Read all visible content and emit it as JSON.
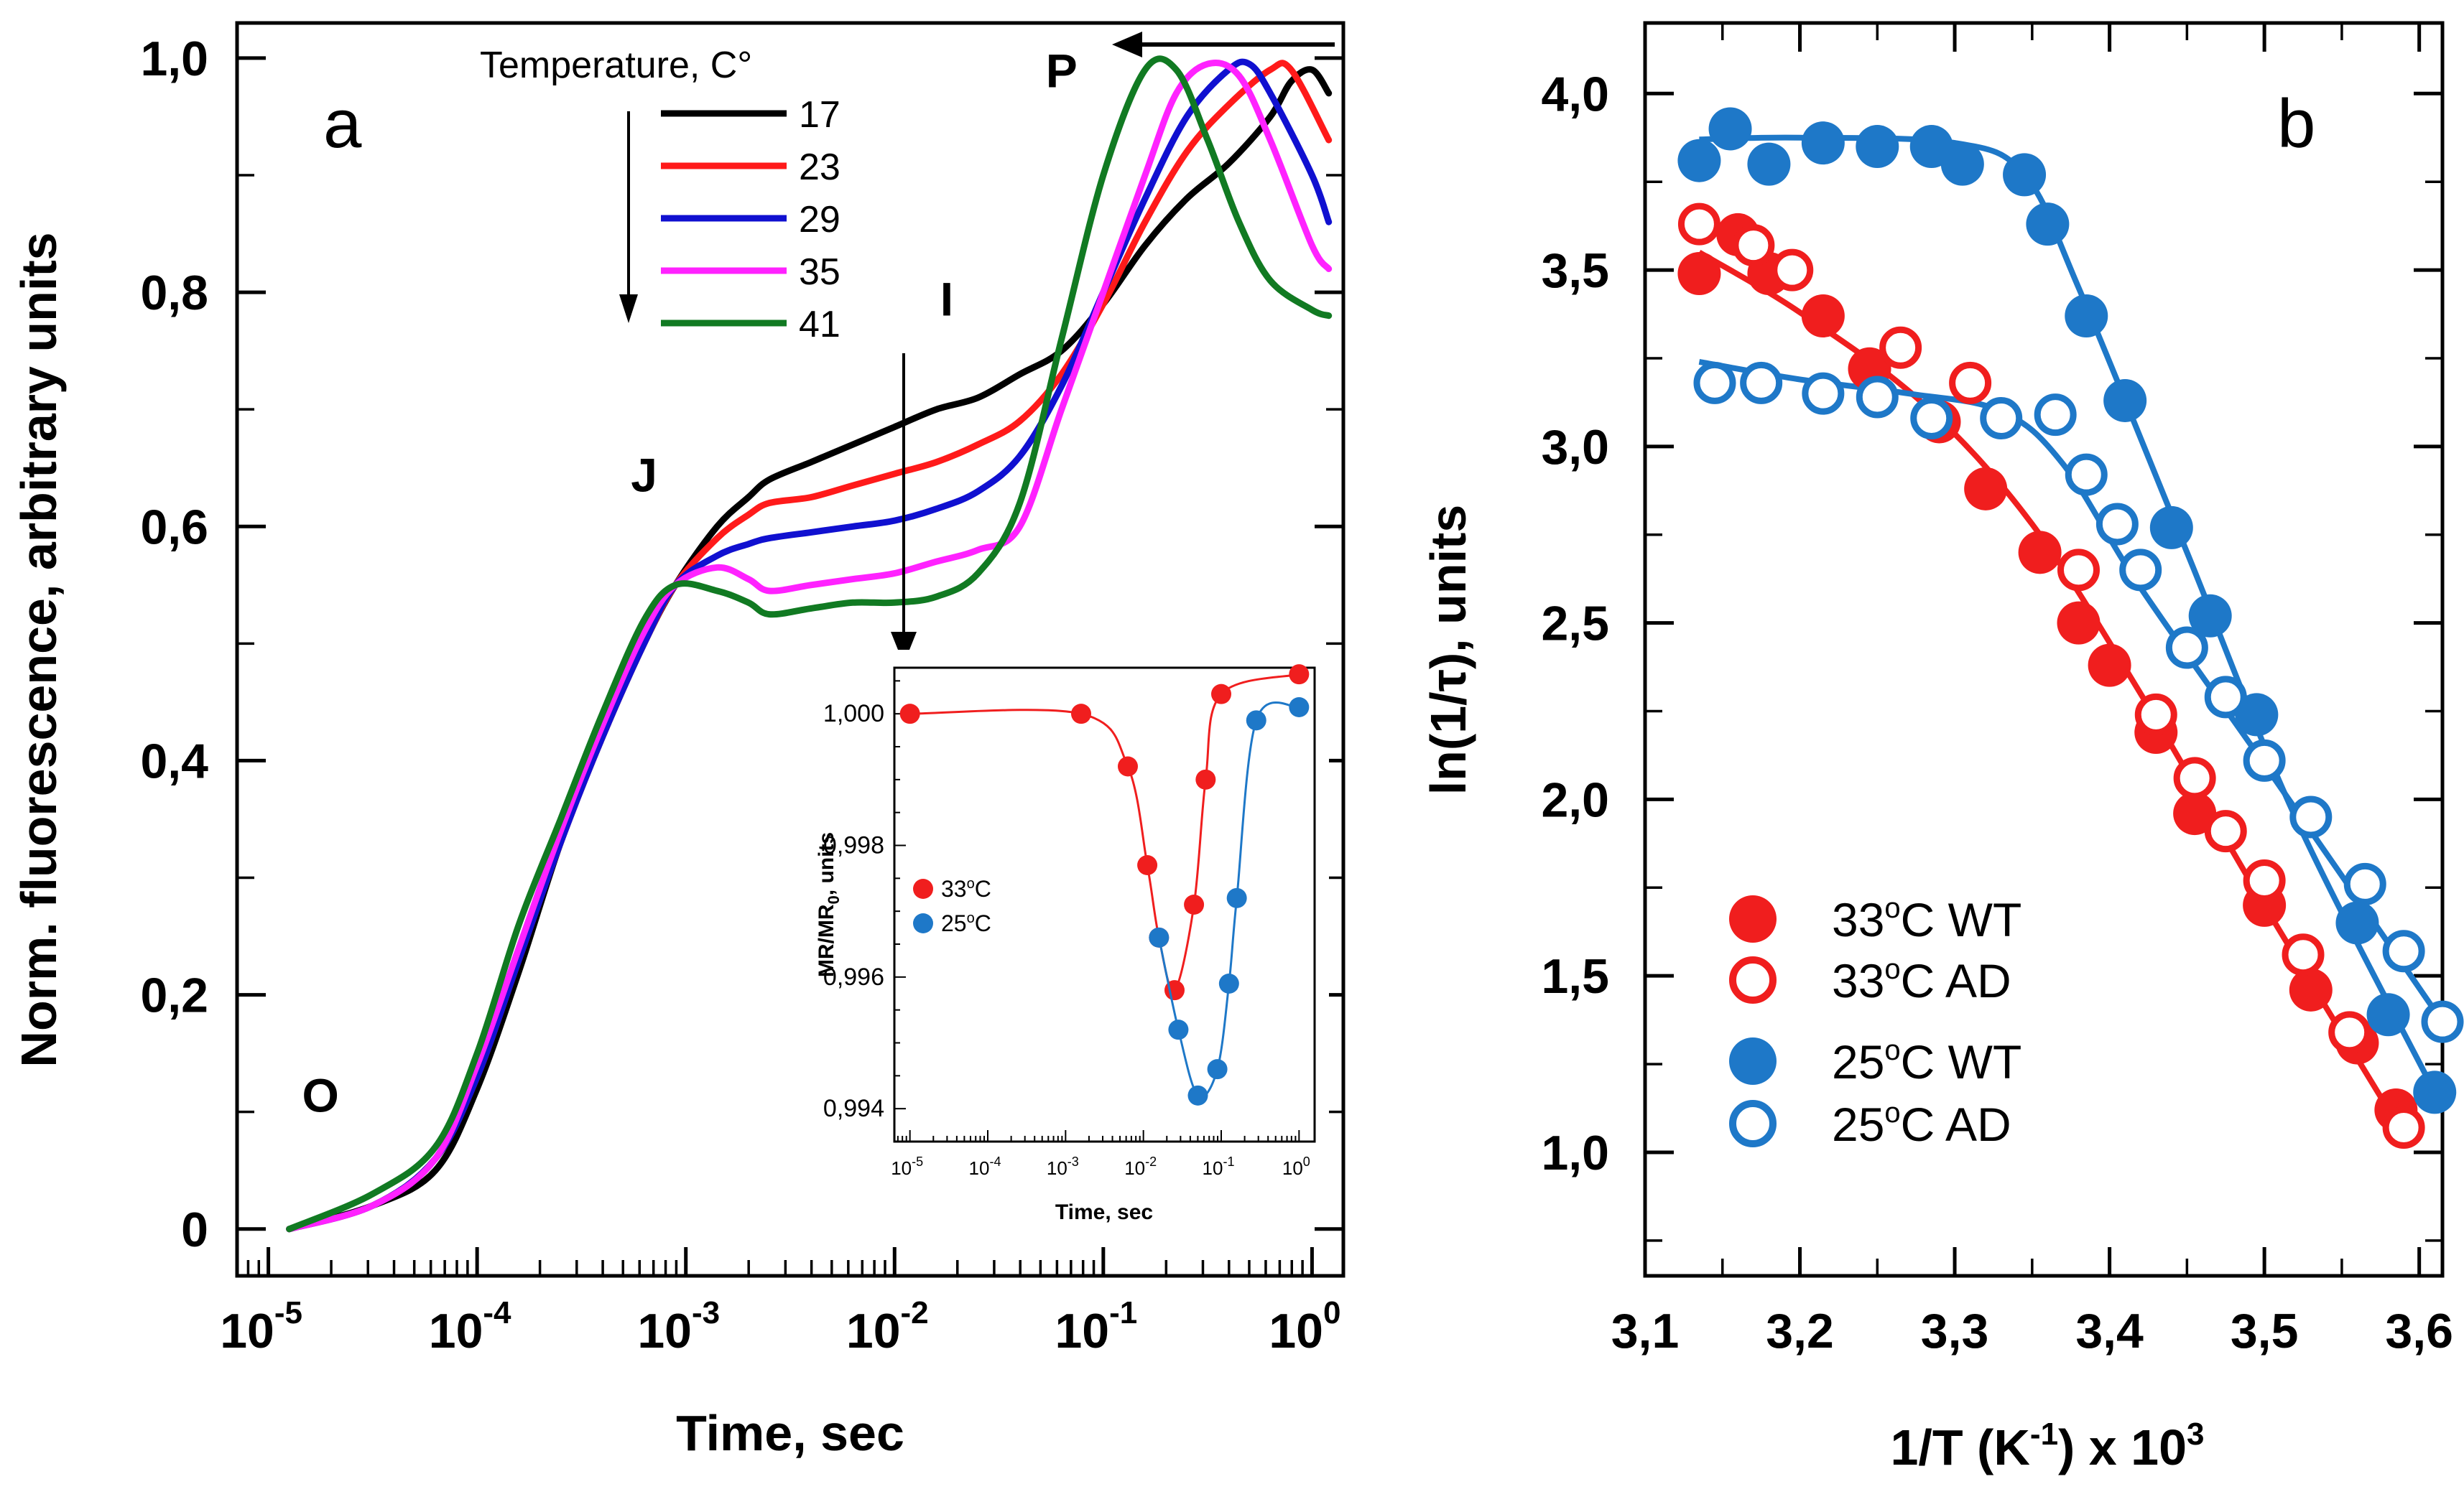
{
  "colors": {
    "17": "#000000",
    "23": "#ff1a1a",
    "29": "#1010d0",
    "35": "#ff22ff",
    "41": "#117a22",
    "red": "#f01e1e",
    "blue": "#1e78c8"
  },
  "chart_data": [
    {
      "id": "a",
      "type": "line",
      "panel_label": "a",
      "xlabel": "Time, sec",
      "ylabel": "Norm. fluorescence, arbitrary units",
      "xscale": "log",
      "xlim": [
        -5.15,
        0.15
      ],
      "ylim": [
        -0.04,
        1.03
      ],
      "xticks": [
        {
          "v": -5,
          "base": "10",
          "exp": "-5"
        },
        {
          "v": -4,
          "base": "10",
          "exp": "-4"
        },
        {
          "v": -3,
          "base": "10",
          "exp": "-3"
        },
        {
          "v": -2,
          "base": "10",
          "exp": "-2"
        },
        {
          "v": -1,
          "base": "10",
          "exp": "-1"
        },
        {
          "v": 0,
          "base": "10",
          "exp": "0"
        }
      ],
      "yticks": [
        {
          "v": 0,
          "label": "0"
        },
        {
          "v": 0.2,
          "label": "0,2"
        },
        {
          "v": 0.4,
          "label": "0,4"
        },
        {
          "v": 0.6,
          "label": "0,6"
        },
        {
          "v": 0.8,
          "label": "0,8"
        },
        {
          "v": 1.0,
          "label": "1,0"
        }
      ],
      "phase_labels": [
        {
          "text": "O",
          "x": -4.75,
          "y": 0.1
        },
        {
          "text": "J",
          "x": -3.2,
          "y": 0.63
        },
        {
          "text": "I",
          "x": -1.75,
          "y": 0.78
        },
        {
          "text": "P",
          "x": -1.2,
          "y": 0.975
        }
      ],
      "legend": {
        "title": "Temperature, C°",
        "entries": [
          {
            "label": "17",
            "color": "#000000"
          },
          {
            "label": "23",
            "color": "#ff1a1a"
          },
          {
            "label": "29",
            "color": "#1010d0"
          },
          {
            "label": "35",
            "color": "#ff22ff"
          },
          {
            "label": "41",
            "color": "#117a22"
          }
        ]
      },
      "series": [
        {
          "name": "17",
          "color": "#000000",
          "x": [
            -4.9,
            -4.5,
            -4.2,
            -4.0,
            -3.8,
            -3.6,
            -3.4,
            -3.2,
            -3.05,
            -2.85,
            -2.7,
            -2.6,
            -2.4,
            -2.2,
            -2.0,
            -1.8,
            -1.6,
            -1.4,
            -1.2,
            -1.0,
            -0.8,
            -0.6,
            -0.4,
            -0.2,
            -0.1,
            0.0,
            0.08
          ],
          "y": [
            0.0,
            0.02,
            0.05,
            0.12,
            0.22,
            0.33,
            0.42,
            0.5,
            0.55,
            0.6,
            0.625,
            0.64,
            0.655,
            0.67,
            0.685,
            0.7,
            0.71,
            0.73,
            0.75,
            0.79,
            0.84,
            0.88,
            0.91,
            0.95,
            0.98,
            0.99,
            0.97
          ]
        },
        {
          "name": "23",
          "color": "#ff1a1a",
          "x": [
            -4.9,
            -4.5,
            -4.2,
            -4.0,
            -3.8,
            -3.6,
            -3.4,
            -3.2,
            -3.05,
            -2.85,
            -2.7,
            -2.6,
            -2.4,
            -2.2,
            -2.0,
            -1.8,
            -1.6,
            -1.4,
            -1.2,
            -1.0,
            -0.8,
            -0.6,
            -0.4,
            -0.2,
            -0.1,
            0.08
          ],
          "y": [
            0.0,
            0.02,
            0.06,
            0.13,
            0.23,
            0.33,
            0.42,
            0.5,
            0.55,
            0.59,
            0.61,
            0.62,
            0.625,
            0.635,
            0.645,
            0.655,
            0.67,
            0.69,
            0.73,
            0.79,
            0.86,
            0.92,
            0.96,
            0.99,
            0.99,
            0.93
          ]
        },
        {
          "name": "29",
          "color": "#1010d0",
          "x": [
            -4.9,
            -4.5,
            -4.2,
            -4.0,
            -3.8,
            -3.6,
            -3.4,
            -3.2,
            -3.05,
            -2.85,
            -2.7,
            -2.6,
            -2.4,
            -2.2,
            -2.0,
            -1.8,
            -1.6,
            -1.4,
            -1.2,
            -1.0,
            -0.8,
            -0.6,
            -0.4,
            -0.3,
            -0.2,
            0.0,
            0.08
          ],
          "y": [
            0.0,
            0.02,
            0.06,
            0.13,
            0.23,
            0.33,
            0.42,
            0.5,
            0.55,
            0.575,
            0.585,
            0.59,
            0.595,
            0.6,
            0.605,
            0.615,
            0.63,
            0.66,
            0.72,
            0.8,
            0.88,
            0.95,
            0.99,
            0.995,
            0.97,
            0.9,
            0.86
          ]
        },
        {
          "name": "35",
          "color": "#ff22ff",
          "x": [
            -4.9,
            -4.5,
            -4.2,
            -4.0,
            -3.8,
            -3.6,
            -3.4,
            -3.2,
            -3.05,
            -2.85,
            -2.7,
            -2.6,
            -2.4,
            -2.2,
            -2.0,
            -1.8,
            -1.6,
            -1.4,
            -1.2,
            -1.0,
            -0.8,
            -0.65,
            -0.5,
            -0.35,
            -0.2,
            0.0,
            0.08
          ],
          "y": [
            0.0,
            0.02,
            0.06,
            0.14,
            0.24,
            0.34,
            0.43,
            0.51,
            0.55,
            0.565,
            0.555,
            0.545,
            0.55,
            0.555,
            0.56,
            0.57,
            0.58,
            0.6,
            0.7,
            0.8,
            0.9,
            0.97,
            0.995,
            0.985,
            0.93,
            0.84,
            0.82
          ]
        },
        {
          "name": "41",
          "color": "#117a22",
          "x": [
            -4.9,
            -4.5,
            -4.2,
            -4.0,
            -3.8,
            -3.6,
            -3.4,
            -3.2,
            -3.05,
            -2.85,
            -2.7,
            -2.6,
            -2.4,
            -2.2,
            -2.0,
            -1.8,
            -1.6,
            -1.4,
            -1.2,
            -1.0,
            -0.8,
            -0.65,
            -0.5,
            -0.35,
            -0.2,
            0.0,
            0.08
          ],
          "y": [
            0.0,
            0.03,
            0.07,
            0.15,
            0.26,
            0.35,
            0.44,
            0.52,
            0.55,
            0.545,
            0.535,
            0.525,
            0.53,
            0.535,
            0.535,
            0.54,
            0.56,
            0.62,
            0.76,
            0.9,
            0.99,
            0.99,
            0.93,
            0.86,
            0.81,
            0.785,
            0.78
          ]
        }
      ]
    },
    {
      "id": "a-inset",
      "type": "line",
      "xlabel": "Time, sec",
      "ylabel": "MR/MR",
      "ylabel_sub": "0",
      "ylabel_suffix": ", units",
      "xscale": "log",
      "xlim": [
        -5.2,
        0.2
      ],
      "ylim": [
        0.9935,
        1.0007
      ],
      "xticks": [
        {
          "v": -5,
          "base": "10",
          "exp": "-5"
        },
        {
          "v": -4,
          "base": "10",
          "exp": "-4"
        },
        {
          "v": -3,
          "base": "10",
          "exp": "-3"
        },
        {
          "v": -2,
          "base": "10",
          "exp": "-2"
        },
        {
          "v": -1,
          "base": "10",
          "exp": "-1"
        },
        {
          "v": 0,
          "base": "10",
          "exp": "0"
        }
      ],
      "yticks": [
        {
          "v": 0.994,
          "label": "0,994"
        },
        {
          "v": 0.996,
          "label": "0,996"
        },
        {
          "v": 0.998,
          "label": "0,998"
        },
        {
          "v": 1.0,
          "label": "1,000"
        }
      ],
      "legend": {
        "entries": [
          {
            "label": "33",
            "sup": "o",
            "unit": "C",
            "color": "#f01e1e"
          },
          {
            "label": "25",
            "sup": "o",
            "unit": "C",
            "color": "#1e78c8"
          }
        ]
      },
      "series": [
        {
          "name": "33oC",
          "color": "#f01e1e",
          "x": [
            -5.0,
            -2.8,
            -2.2,
            -1.95,
            -1.8,
            -1.6,
            -1.35,
            -1.2,
            -1.0,
            0.0
          ],
          "y": [
            1.0,
            1.0,
            0.9992,
            0.9977,
            0.9966,
            0.9958,
            0.9971,
            0.999,
            1.0003,
            1.0006
          ]
        },
        {
          "name": "25oC",
          "color": "#1e78c8",
          "x": [
            -1.8,
            -1.55,
            -1.3,
            -1.05,
            -0.9,
            -0.8,
            -0.55,
            0.0
          ],
          "y": [
            0.9966,
            0.9952,
            0.9942,
            0.9946,
            0.9959,
            0.9972,
            0.9999,
            1.0001
          ]
        }
      ]
    },
    {
      "id": "b",
      "type": "scatter",
      "panel_label": "b",
      "xlabel": "1/T (K",
      "xlabel_sup": "-1",
      "xlabel_suffix": ") x 10",
      "xlabel_sup2": "3",
      "ylabel": "ln(1/τ), units",
      "xlim": [
        3.1,
        3.615
      ],
      "ylim": [
        0.65,
        4.2
      ],
      "xticks": [
        {
          "v": 3.1,
          "label": "3,1"
        },
        {
          "v": 3.2,
          "label": "3,2"
        },
        {
          "v": 3.3,
          "label": "3,3"
        },
        {
          "v": 3.4,
          "label": "3,4"
        },
        {
          "v": 3.5,
          "label": "3,5"
        },
        {
          "v": 3.6,
          "label": "3,6"
        }
      ],
      "yticks": [
        {
          "v": 1.0,
          "label": "1,0"
        },
        {
          "v": 1.5,
          "label": "1,5"
        },
        {
          "v": 2.0,
          "label": "2,0"
        },
        {
          "v": 2.5,
          "label": "2,5"
        },
        {
          "v": 3.0,
          "label": "3,0"
        },
        {
          "v": 3.5,
          "label": "3,5"
        },
        {
          "v": 4.0,
          "label": "4,0"
        }
      ],
      "legend": {
        "entries": [
          {
            "label": "33",
            "sup": "o",
            "rest": "C WT",
            "color": "#f01e1e",
            "filled": true
          },
          {
            "label": "33",
            "sup": "o",
            "rest": "C AD",
            "color": "#f01e1e",
            "filled": false
          },
          {
            "label": "25",
            "sup": "o",
            "rest": "C WT",
            "color": "#1e78c8",
            "filled": true
          },
          {
            "label": "25",
            "sup": "o",
            "rest": "C AD",
            "color": "#1e78c8",
            "filled": false
          }
        ]
      },
      "series": [
        {
          "name": "33oC WT",
          "color": "#f01e1e",
          "filled": true,
          "x": [
            3.135,
            3.16,
            3.18,
            3.215,
            3.245,
            3.29,
            3.32,
            3.355,
            3.38,
            3.4,
            3.43,
            3.455,
            3.5,
            3.53,
            3.56,
            3.585
          ],
          "y": [
            3.49,
            3.6,
            3.49,
            3.37,
            3.22,
            3.07,
            2.88,
            2.7,
            2.5,
            2.38,
            2.19,
            1.96,
            1.7,
            1.46,
            1.31,
            1.12
          ]
        },
        {
          "name": "33oC AD",
          "color": "#f01e1e",
          "filled": false,
          "x": [
            3.135,
            3.17,
            3.195,
            3.265,
            3.31,
            3.38,
            3.43,
            3.455,
            3.475,
            3.5,
            3.525,
            3.555,
            3.59
          ],
          "y": [
            3.63,
            3.57,
            3.5,
            3.28,
            3.18,
            2.65,
            2.24,
            2.06,
            1.91,
            1.77,
            1.56,
            1.34,
            1.07
          ]
        },
        {
          "name": "33oC fit",
          "color": "#f01e1e",
          "line": true,
          "x": [
            3.135,
            3.2,
            3.28,
            3.35,
            3.42,
            3.5,
            3.59
          ],
          "y": [
            3.55,
            3.38,
            3.12,
            2.78,
            2.3,
            1.7,
            1.05
          ]
        },
        {
          "name": "25oC WT",
          "color": "#1e78c8",
          "filled": true,
          "x": [
            3.135,
            3.155,
            3.18,
            3.215,
            3.25,
            3.285,
            3.305,
            3.345,
            3.36,
            3.385,
            3.41,
            3.44,
            3.465,
            3.495,
            3.56,
            3.58,
            3.61
          ],
          "y": [
            3.81,
            3.9,
            3.8,
            3.86,
            3.85,
            3.85,
            3.8,
            3.77,
            3.63,
            3.37,
            3.13,
            2.77,
            2.52,
            2.24,
            1.65,
            1.39,
            1.17
          ]
        },
        {
          "name": "25oC WT fit",
          "color": "#1e78c8",
          "line": true,
          "x": [
            3.135,
            3.2,
            3.3,
            3.345,
            3.38,
            3.45,
            3.52,
            3.61
          ],
          "y": [
            3.87,
            3.875,
            3.86,
            3.77,
            3.45,
            2.7,
            1.95,
            1.17
          ]
        },
        {
          "name": "25oC AD",
          "color": "#1e78c8",
          "filled": false,
          "x": [
            3.145,
            3.175,
            3.215,
            3.25,
            3.285,
            3.33,
            3.365,
            3.385,
            3.405,
            3.42,
            3.45,
            3.475,
            3.5,
            3.53,
            3.565,
            3.59,
            3.615
          ],
          "y": [
            3.18,
            3.18,
            3.15,
            3.14,
            3.08,
            3.08,
            3.09,
            2.92,
            2.78,
            2.65,
            2.43,
            2.29,
            2.11,
            1.95,
            1.76,
            1.57,
            1.37
          ]
        },
        {
          "name": "25oC AD fit",
          "color": "#1e78c8",
          "line": true,
          "x": [
            3.135,
            3.2,
            3.27,
            3.33,
            3.37,
            3.42,
            3.5,
            3.56,
            3.615
          ],
          "y": [
            3.24,
            3.19,
            3.15,
            3.1,
            2.95,
            2.6,
            2.1,
            1.72,
            1.37
          ]
        }
      ]
    }
  ]
}
